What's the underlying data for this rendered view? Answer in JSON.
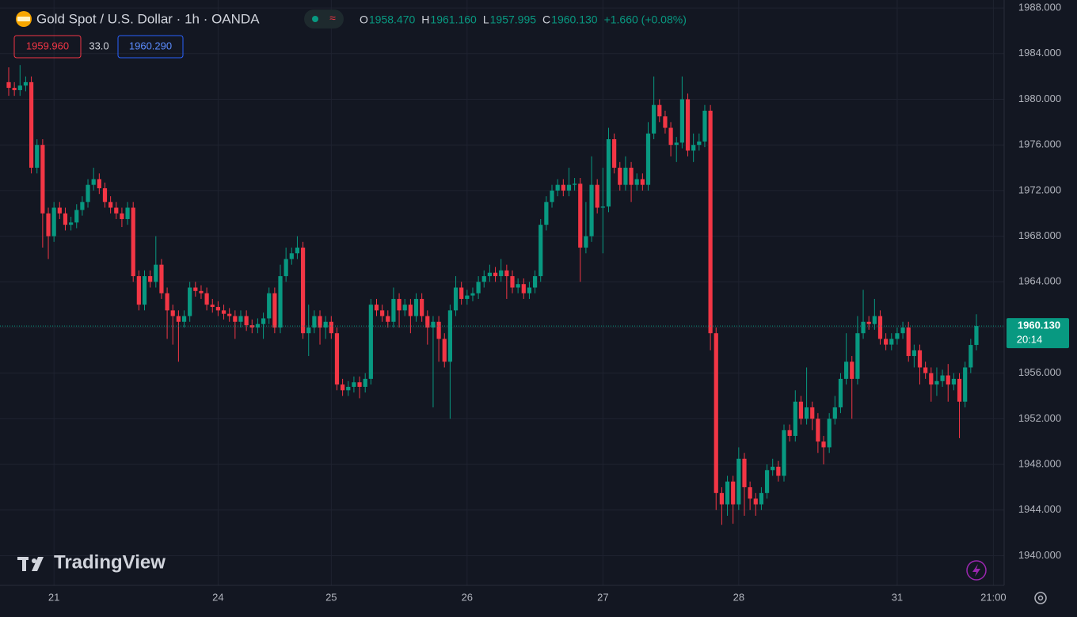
{
  "chart_data": {
    "type": "candlestick",
    "title": "Gold Spot / U.S. Dollar · 1h · OANDA",
    "legend_ohlc": [
      {
        "label": "O",
        "value": "1958.470"
      },
      {
        "label": "H",
        "value": "1961.160"
      },
      {
        "label": "L",
        "value": "1957.995"
      },
      {
        "label": "C",
        "value": "1960.130"
      }
    ],
    "change": "+1.660 (+0.08%)",
    "bid": "1959.960",
    "spread": "33.0",
    "ask": "1960.290",
    "last_price_label": "1960.130",
    "countdown": "20:14",
    "watermark": "TradingView",
    "up_color": "#089981",
    "down_color": "#f23645",
    "grid": true,
    "ylim": [
      1937.4,
      1988.7
    ],
    "yticks": [
      {
        "value": 1940,
        "label": "1940.000"
      },
      {
        "value": 1944,
        "label": "1944.000"
      },
      {
        "value": 1948,
        "label": "1948.000"
      },
      {
        "value": 1952,
        "label": "1952.000"
      },
      {
        "value": 1956,
        "label": "1956.000"
      },
      {
        "value": 1960,
        "label": "1960.000"
      },
      {
        "value": 1964,
        "label": "1964.000"
      },
      {
        "value": 1968,
        "label": "1968.000"
      },
      {
        "value": 1972,
        "label": "1972.000"
      },
      {
        "value": 1976,
        "label": "1976.000"
      },
      {
        "value": 1980,
        "label": "1980.000"
      },
      {
        "value": 1984,
        "label": "1984.000"
      },
      {
        "value": 1988,
        "label": "1988.000"
      }
    ],
    "categories": [
      null,
      null,
      null,
      null,
      null,
      null,
      null,
      null,
      "21",
      null,
      null,
      null,
      null,
      null,
      null,
      null,
      null,
      null,
      null,
      null,
      null,
      null,
      null,
      null,
      null,
      null,
      null,
      null,
      null,
      null,
      null,
      null,
      null,
      null,
      null,
      null,
      null,
      "24",
      null,
      null,
      null,
      null,
      null,
      null,
      null,
      null,
      null,
      null,
      null,
      null,
      null,
      null,
      null,
      null,
      null,
      null,
      null,
      "25",
      null,
      null,
      null,
      null,
      null,
      null,
      null,
      null,
      null,
      null,
      null,
      null,
      null,
      null,
      null,
      null,
      null,
      null,
      null,
      null,
      null,
      null,
      null,
      "26",
      null,
      null,
      null,
      null,
      null,
      null,
      null,
      null,
      null,
      null,
      null,
      null,
      null,
      null,
      null,
      null,
      null,
      null,
      null,
      null,
      null,
      null,
      null,
      "27",
      null,
      null,
      null,
      null,
      null,
      null,
      null,
      null,
      null,
      null,
      null,
      null,
      null,
      null,
      null,
      null,
      null,
      null,
      null,
      null,
      null,
      null,
      null,
      "28",
      null,
      null,
      null,
      null,
      null,
      null,
      null,
      null,
      null,
      null,
      null,
      null,
      null,
      null,
      null,
      null,
      null,
      null,
      null,
      null,
      null,
      null,
      null,
      null,
      null,
      null,
      null,
      "31",
      null,
      null,
      null,
      null,
      null,
      null,
      null,
      null,
      null,
      null,
      null,
      null,
      null,
      null,
      null,
      null,
      "21:00"
    ],
    "open": [
      1981.5,
      1981.0,
      1980.8,
      1981.2,
      1981.5,
      1974.0,
      1976.0,
      1970.0,
      1968.0,
      1970.5,
      1970.0,
      1969.0,
      1969.2,
      1970.3,
      1971.0,
      1972.5,
      1973.0,
      1972.2,
      1971.0,
      1970.5,
      1970.0,
      1969.5,
      1970.5,
      1964.5,
      1962.0,
      1964.5,
      1964.0,
      1965.5,
      1963.0,
      1961.5,
      1961.0,
      1960.5,
      1961.0,
      1963.5,
      1963.2,
      1963.0,
      1962.0,
      1961.8,
      1961.5,
      1961.2,
      1961.0,
      1960.5,
      1961.0,
      1960.2,
      1960.0,
      1960.3,
      1960.8,
      1963.0,
      1960.0,
      1964.5,
      1966.0,
      1966.5,
      1967.0,
      1959.5,
      1960.0,
      1961.0,
      1960.0,
      1960.5,
      1959.5,
      1955.0,
      1954.5,
      1954.8,
      1955.2,
      1954.8,
      1955.5,
      1962.0,
      1961.5,
      1961.0,
      1960.5,
      1962.5,
      1961.5,
      1962.0,
      1961.0,
      1962.5,
      1961.0,
      1960.0,
      1960.5,
      1959.0,
      1957.0,
      1961.5,
      1963.5,
      1962.5,
      1962.8,
      1963.0,
      1964.0,
      1964.5,
      1964.8,
      1964.5,
      1965.0,
      1964.5,
      1963.5,
      1963.8,
      1963.0,
      1963.5,
      1964.5,
      1969.0,
      1971.0,
      1972.0,
      1972.5,
      1972.0,
      1972.5,
      1972.6,
      1967.0,
      1968.0,
      1972.5,
      1970.5,
      1970.6,
      1976.5,
      1974.0,
      1972.5,
      1974.0,
      1972.5,
      1973.0,
      1972.5,
      1977.0,
      1979.5,
      1978.5,
      1977.5,
      1976.0,
      1976.2,
      1980.0,
      1975.5,
      1976.0,
      1976.3,
      1979.0,
      1959.5,
      1945.5,
      1944.5,
      1946.5,
      1944.5,
      1948.5,
      1946.0,
      1945.0,
      1944.5,
      1945.5,
      1947.5,
      1947.8,
      1947.0,
      1951.0,
      1950.5,
      1953.5,
      1952.0,
      1953.0,
      1952.0,
      1950.0,
      1949.5,
      1952.0,
      1953.0,
      1955.5,
      1957.0,
      1955.5,
      1959.5,
      1960.5,
      1960.3,
      1961.0,
      1959.0,
      1958.5,
      1959.0,
      1959.5,
      1960.0,
      1957.5,
      1958.0,
      1956.5,
      1956.0,
      1955.0,
      1955.3,
      1955.8,
      1955.0,
      1955.5,
      1953.5,
      1956.5,
      1958.47,
      null,
      null,
      null
    ],
    "high": [
      1982.8,
      1981.5,
      1983.0,
      1982.0,
      1982.0,
      1976.5,
      1976.5,
      1970.5,
      1971.0,
      1971.0,
      1970.5,
      1969.7,
      1970.8,
      1971.5,
      1973.0,
      1974.0,
      1973.5,
      1972.7,
      1971.5,
      1971.0,
      1970.5,
      1971.0,
      1971.0,
      1965.0,
      1965.0,
      1965.0,
      1968.0,
      1966.0,
      1963.5,
      1962.0,
      1961.5,
      1961.5,
      1964.0,
      1964.0,
      1963.7,
      1963.5,
      1962.5,
      1962.3,
      1962.0,
      1961.7,
      1961.5,
      1961.5,
      1961.5,
      1960.7,
      1960.8,
      1961.3,
      1963.5,
      1963.5,
      1965.5,
      1967.0,
      1967.0,
      1968.0,
      1967.5,
      1962.0,
      1961.5,
      1961.5,
      1961.0,
      1961.0,
      1960.0,
      1955.5,
      1955.3,
      1955.7,
      1955.7,
      1956.0,
      1962.5,
      1962.5,
      1962.0,
      1961.5,
      1963.5,
      1963.0,
      1962.5,
      1962.5,
      1963.0,
      1963.0,
      1961.5,
      1961.0,
      1961.0,
      1959.5,
      1962.0,
      1964.5,
      1964.0,
      1963.3,
      1963.5,
      1964.5,
      1965.0,
      1965.5,
      1965.3,
      1966.0,
      1965.5,
      1965.0,
      1964.3,
      1964.3,
      1964.0,
      1965.0,
      1969.5,
      1971.5,
      1972.5,
      1973.0,
      1973.0,
      1974.0,
      1973.1,
      1973.1,
      1971.0,
      1975.0,
      1973.0,
      1974.0,
      1977.5,
      1977.0,
      1974.5,
      1975.0,
      1974.5,
      1973.5,
      1973.5,
      1978.0,
      1982.0,
      1980.0,
      1979.0,
      1978.0,
      1976.7,
      1982.0,
      1980.5,
      1977.0,
      1977.0,
      1979.5,
      1979.5,
      1960.0,
      1946.0,
      1947.0,
      1947.0,
      1949.5,
      1949.0,
      1946.5,
      1945.5,
      1946.0,
      1948.0,
      1948.5,
      1948.3,
      1951.5,
      1951.5,
      1954.5,
      1954.0,
      1956.5,
      1953.5,
      1952.5,
      1950.5,
      1952.5,
      1954.0,
      1956.0,
      1959.5,
      1957.5,
      1961.0,
      1963.3,
      1961.0,
      1962.5,
      1961.5,
      1959.5,
      1959.5,
      1960.0,
      1960.5,
      1960.5,
      1958.5,
      1958.5,
      1957.0,
      1956.5,
      1956.5,
      1956.3,
      1956.8,
      1956.0,
      1956.0,
      1957.0,
      1959.0,
      1961.16,
      null,
      null,
      null
    ],
    "low": [
      1980.3,
      1980.3,
      1980.3,
      1980.7,
      1973.5,
      1973.5,
      1967.0,
      1966.0,
      1967.5,
      1969.5,
      1968.5,
      1968.5,
      1968.7,
      1969.8,
      1970.5,
      1972.0,
      1971.7,
      1970.5,
      1970.0,
      1969.5,
      1968.8,
      1969.0,
      1964.0,
      1961.5,
      1961.5,
      1963.5,
      1963.5,
      1962.5,
      1959.0,
      1958.5,
      1957.0,
      1960.0,
      1960.5,
      1962.7,
      1962.5,
      1961.5,
      1961.3,
      1961.0,
      1960.7,
      1960.5,
      1959.0,
      1960.0,
      1959.7,
      1959.5,
      1959.5,
      1959.0,
      1960.3,
      1959.5,
      1959.5,
      1964.0,
      1965.5,
      1966.0,
      1959.0,
      1957.5,
      1959.5,
      1958.5,
      1959.0,
      1959.0,
      1954.5,
      1954.0,
      1954.0,
      1954.3,
      1953.8,
      1954.3,
      1955.0,
      1961.0,
      1960.5,
      1960.0,
      1960.0,
      1960.0,
      1961.0,
      1959.5,
      1960.5,
      1960.5,
      1958.5,
      1953.0,
      1957.0,
      1956.5,
      1952.0,
      1961.0,
      1962.0,
      1962.0,
      1962.3,
      1962.5,
      1963.5,
      1964.0,
      1964.0,
      1964.0,
      1962.5,
      1963.0,
      1963.0,
      1962.5,
      1962.5,
      1963.0,
      1964.0,
      1968.5,
      1970.5,
      1971.5,
      1971.5,
      1971.5,
      1972.0,
      1964.0,
      1966.5,
      1967.5,
      1970.0,
      1966.5,
      1970.1,
      1973.5,
      1972.0,
      1972.0,
      1971.0,
      1972.0,
      1972.0,
      1972.0,
      1976.5,
      1978.0,
      1977.0,
      1975.0,
      1974.5,
      1975.7,
      1975.0,
      1974.5,
      1975.5,
      1975.8,
      1958.0,
      1944.0,
      1942.7,
      1943.5,
      1942.8,
      1944.0,
      1943.5,
      1944.0,
      1943.5,
      1944.0,
      1945.0,
      1947.0,
      1946.5,
      1946.5,
      1950.0,
      1950.0,
      1951.5,
      1951.5,
      1951.0,
      1949.0,
      1948.0,
      1949.0,
      1951.5,
      1952.5,
      1955.0,
      1952.0,
      1955.0,
      1959.0,
      1959.8,
      1959.8,
      1958.5,
      1958.0,
      1958.0,
      1958.5,
      1959.0,
      1957.0,
      1956.5,
      1955.0,
      1955.5,
      1953.5,
      1954.0,
      1954.8,
      1953.5,
      1954.5,
      1950.3,
      1953.0,
      1956.0,
      1957.995,
      null,
      null,
      null
    ],
    "close": [
      1981.0,
      1980.8,
      1981.2,
      1981.5,
      1974.0,
      1976.0,
      1970.0,
      1968.0,
      1970.5,
      1970.0,
      1969.0,
      1969.2,
      1970.3,
      1971.0,
      1972.5,
      1973.0,
      1972.2,
      1971.0,
      1970.5,
      1970.0,
      1969.5,
      1970.5,
      1964.5,
      1962.0,
      1964.5,
      1964.0,
      1965.5,
      1963.0,
      1961.5,
      1961.0,
      1960.5,
      1961.0,
      1963.5,
      1963.2,
      1963.0,
      1962.0,
      1961.8,
      1961.5,
      1961.2,
      1961.0,
      1960.5,
      1961.0,
      1960.2,
      1960.0,
      1960.3,
      1960.8,
      1963.0,
      1960.0,
      1964.5,
      1966.0,
      1966.5,
      1967.0,
      1959.5,
      1960.0,
      1961.0,
      1960.0,
      1960.5,
      1959.5,
      1955.0,
      1954.5,
      1954.8,
      1955.2,
      1954.8,
      1955.5,
      1962.0,
      1961.5,
      1961.0,
      1960.5,
      1962.5,
      1961.5,
      1962.0,
      1961.0,
      1962.5,
      1961.0,
      1960.0,
      1960.5,
      1959.0,
      1957.0,
      1961.5,
      1963.5,
      1962.5,
      1962.8,
      1963.0,
      1964.0,
      1964.5,
      1964.8,
      1964.5,
      1965.0,
      1964.5,
      1963.5,
      1963.8,
      1963.0,
      1963.5,
      1964.5,
      1969.0,
      1971.0,
      1972.0,
      1972.5,
      1972.0,
      1972.5,
      1972.6,
      1967.0,
      1968.0,
      1972.5,
      1970.5,
      1970.6,
      1976.5,
      1974.0,
      1972.5,
      1974.0,
      1972.5,
      1973.0,
      1972.5,
      1977.0,
      1979.5,
      1978.5,
      1977.5,
      1976.0,
      1976.2,
      1980.0,
      1975.5,
      1976.0,
      1976.3,
      1979.0,
      1959.5,
      1945.5,
      1944.5,
      1946.5,
      1944.5,
      1948.5,
      1946.0,
      1945.0,
      1944.5,
      1945.5,
      1947.5,
      1947.8,
      1947.0,
      1951.0,
      1950.5,
      1953.5,
      1952.0,
      1953.0,
      1952.0,
      1950.0,
      1949.5,
      1952.0,
      1953.0,
      1955.5,
      1957.0,
      1955.5,
      1959.5,
      1960.5,
      1960.3,
      1961.0,
      1959.0,
      1958.5,
      1959.0,
      1959.5,
      1960.0,
      1957.5,
      1958.0,
      1956.5,
      1956.0,
      1955.0,
      1955.3,
      1955.8,
      1955.0,
      1955.5,
      1953.5,
      1956.5,
      1958.47,
      1960.13,
      null,
      null,
      null
    ]
  }
}
